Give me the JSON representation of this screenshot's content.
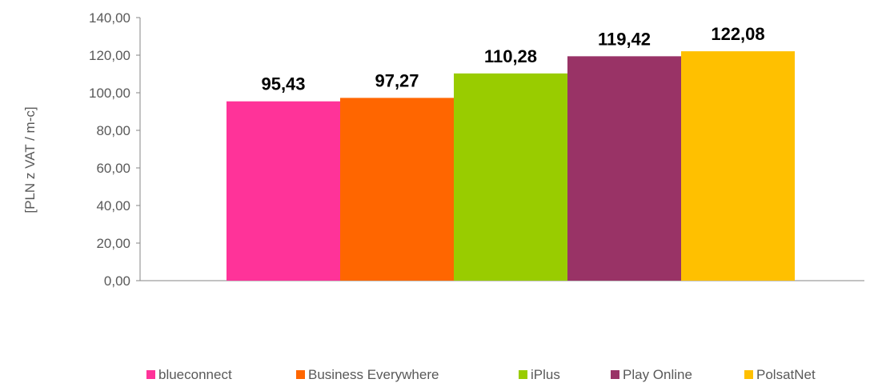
{
  "chart_data": {
    "type": "bar",
    "categories": [
      ""
    ],
    "series": [
      {
        "name": "blueconnect",
        "values": [
          95.43
        ],
        "label": "95,43",
        "color": "#ff3399"
      },
      {
        "name": "Business Everywhere",
        "values": [
          97.27
        ],
        "label": "97,27",
        "color": "#ff6600"
      },
      {
        "name": "iPlus",
        "values": [
          110.28
        ],
        "label": "110,28",
        "color": "#99cc00"
      },
      {
        "name": "Play Online",
        "values": [
          119.42
        ],
        "label": "119,42",
        "color": "#993366"
      },
      {
        "name": "PolsatNet",
        "values": [
          122.08
        ],
        "label": "122,08",
        "color": "#ffc000"
      }
    ],
    "title": "",
    "xlabel": "",
    "ylabel": "[PLN z VAT / m-c]",
    "ylim": [
      0,
      140
    ],
    "yticks": [
      0,
      20,
      40,
      60,
      80,
      100,
      120,
      140
    ],
    "ytick_labels": [
      "0,00",
      "20,00",
      "40,00",
      "60,00",
      "80,00",
      "100,00",
      "120,00",
      "140,00"
    ],
    "grid": false,
    "legend_position": "bottom"
  }
}
